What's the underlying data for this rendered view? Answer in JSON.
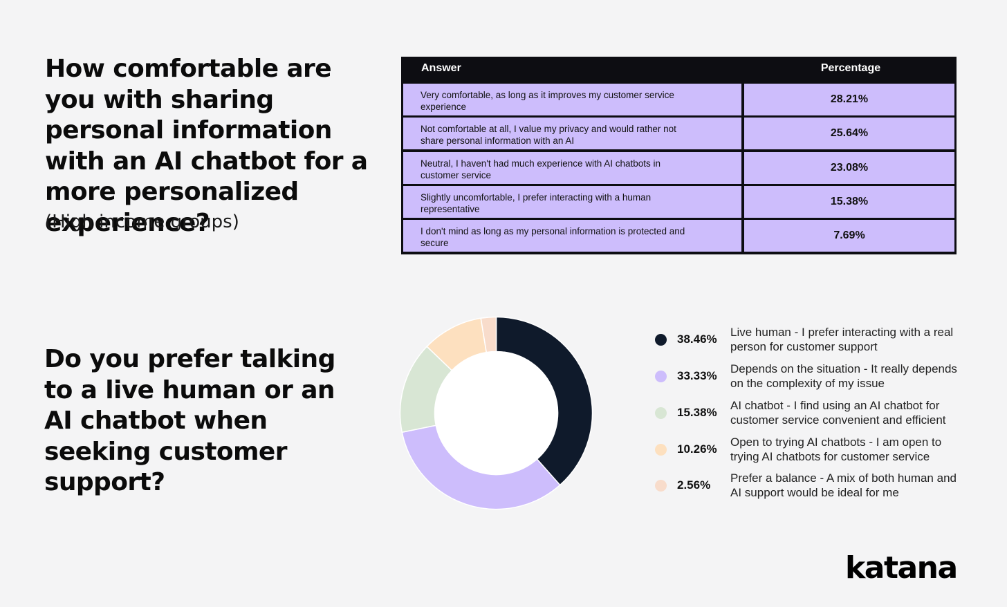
{
  "question1": {
    "title": "How comfortable are you with sharing personal information with an AI chatbot for a more personalized experience?",
    "subtitle": "(High income groups)"
  },
  "table": {
    "headers": [
      "Answer",
      "Percentage"
    ],
    "rows": [
      {
        "answer": "Very comfortable, as long as it improves my customer service experience",
        "percentage": "28.21%"
      },
      {
        "answer": "Not comfortable at all, I value my privacy and would rather not share personal information with an AI",
        "percentage": "25.64%"
      },
      {
        "answer": "Neutral, I haven't had much experience with AI chatbots in customer service",
        "percentage": "23.08%"
      },
      {
        "answer": "Slightly uncomfortable, I prefer interacting with a human representative",
        "percentage": "15.38%"
      },
      {
        "answer": "I don't mind as long as my personal information is protected and secure",
        "percentage": "7.69%"
      }
    ]
  },
  "question2": {
    "title": "Do you prefer talking to a live human or an AI chatbot when seeking customer support?"
  },
  "chart_data": [
    {
      "type": "table",
      "columns": [
        "Answer",
        "Percentage"
      ],
      "rows": [
        [
          "Very comfortable, as long as it improves my customer service experience",
          28.21
        ],
        [
          "Not comfortable at all, I value my privacy and would rather not share personal information with an AI",
          25.64
        ],
        [
          "Neutral, I haven't had much experience with AI chatbots in customer service",
          23.08
        ],
        [
          "Slightly uncomfortable, I prefer interacting with a human representative",
          15.38
        ],
        [
          "I don't mind as long as my personal information is protected and secure",
          7.69
        ]
      ]
    },
    {
      "type": "pie",
      "donut": true,
      "legend_position": "right",
      "slices": [
        {
          "label": "Live human - I prefer interacting with a real person for customer support",
          "value": 38.46,
          "value_label": "38.46%",
          "color": "#0f1a2b"
        },
        {
          "label": "Depends on the situation - It really depends on the complexity of my issue",
          "value": 33.33,
          "value_label": "33.33%",
          "color": "#cdbdfc"
        },
        {
          "label": "AI chatbot - I find using an AI chatbot for customer service convenient and efficient",
          "value": 15.38,
          "value_label": "15.38%",
          "color": "#d8e6d4"
        },
        {
          "label": "Open to trying AI chatbots - I am open to trying AI chatbots for customer service",
          "value": 10.26,
          "value_label": "10.26%",
          "color": "#fde0bf"
        },
        {
          "label": "Prefer a balance - A mix of both human and AI support would be ideal for me",
          "value": 2.56,
          "value_label": "2.56%",
          "color": "#f8dccb"
        }
      ]
    }
  ],
  "logo": {
    "text": "katana"
  }
}
